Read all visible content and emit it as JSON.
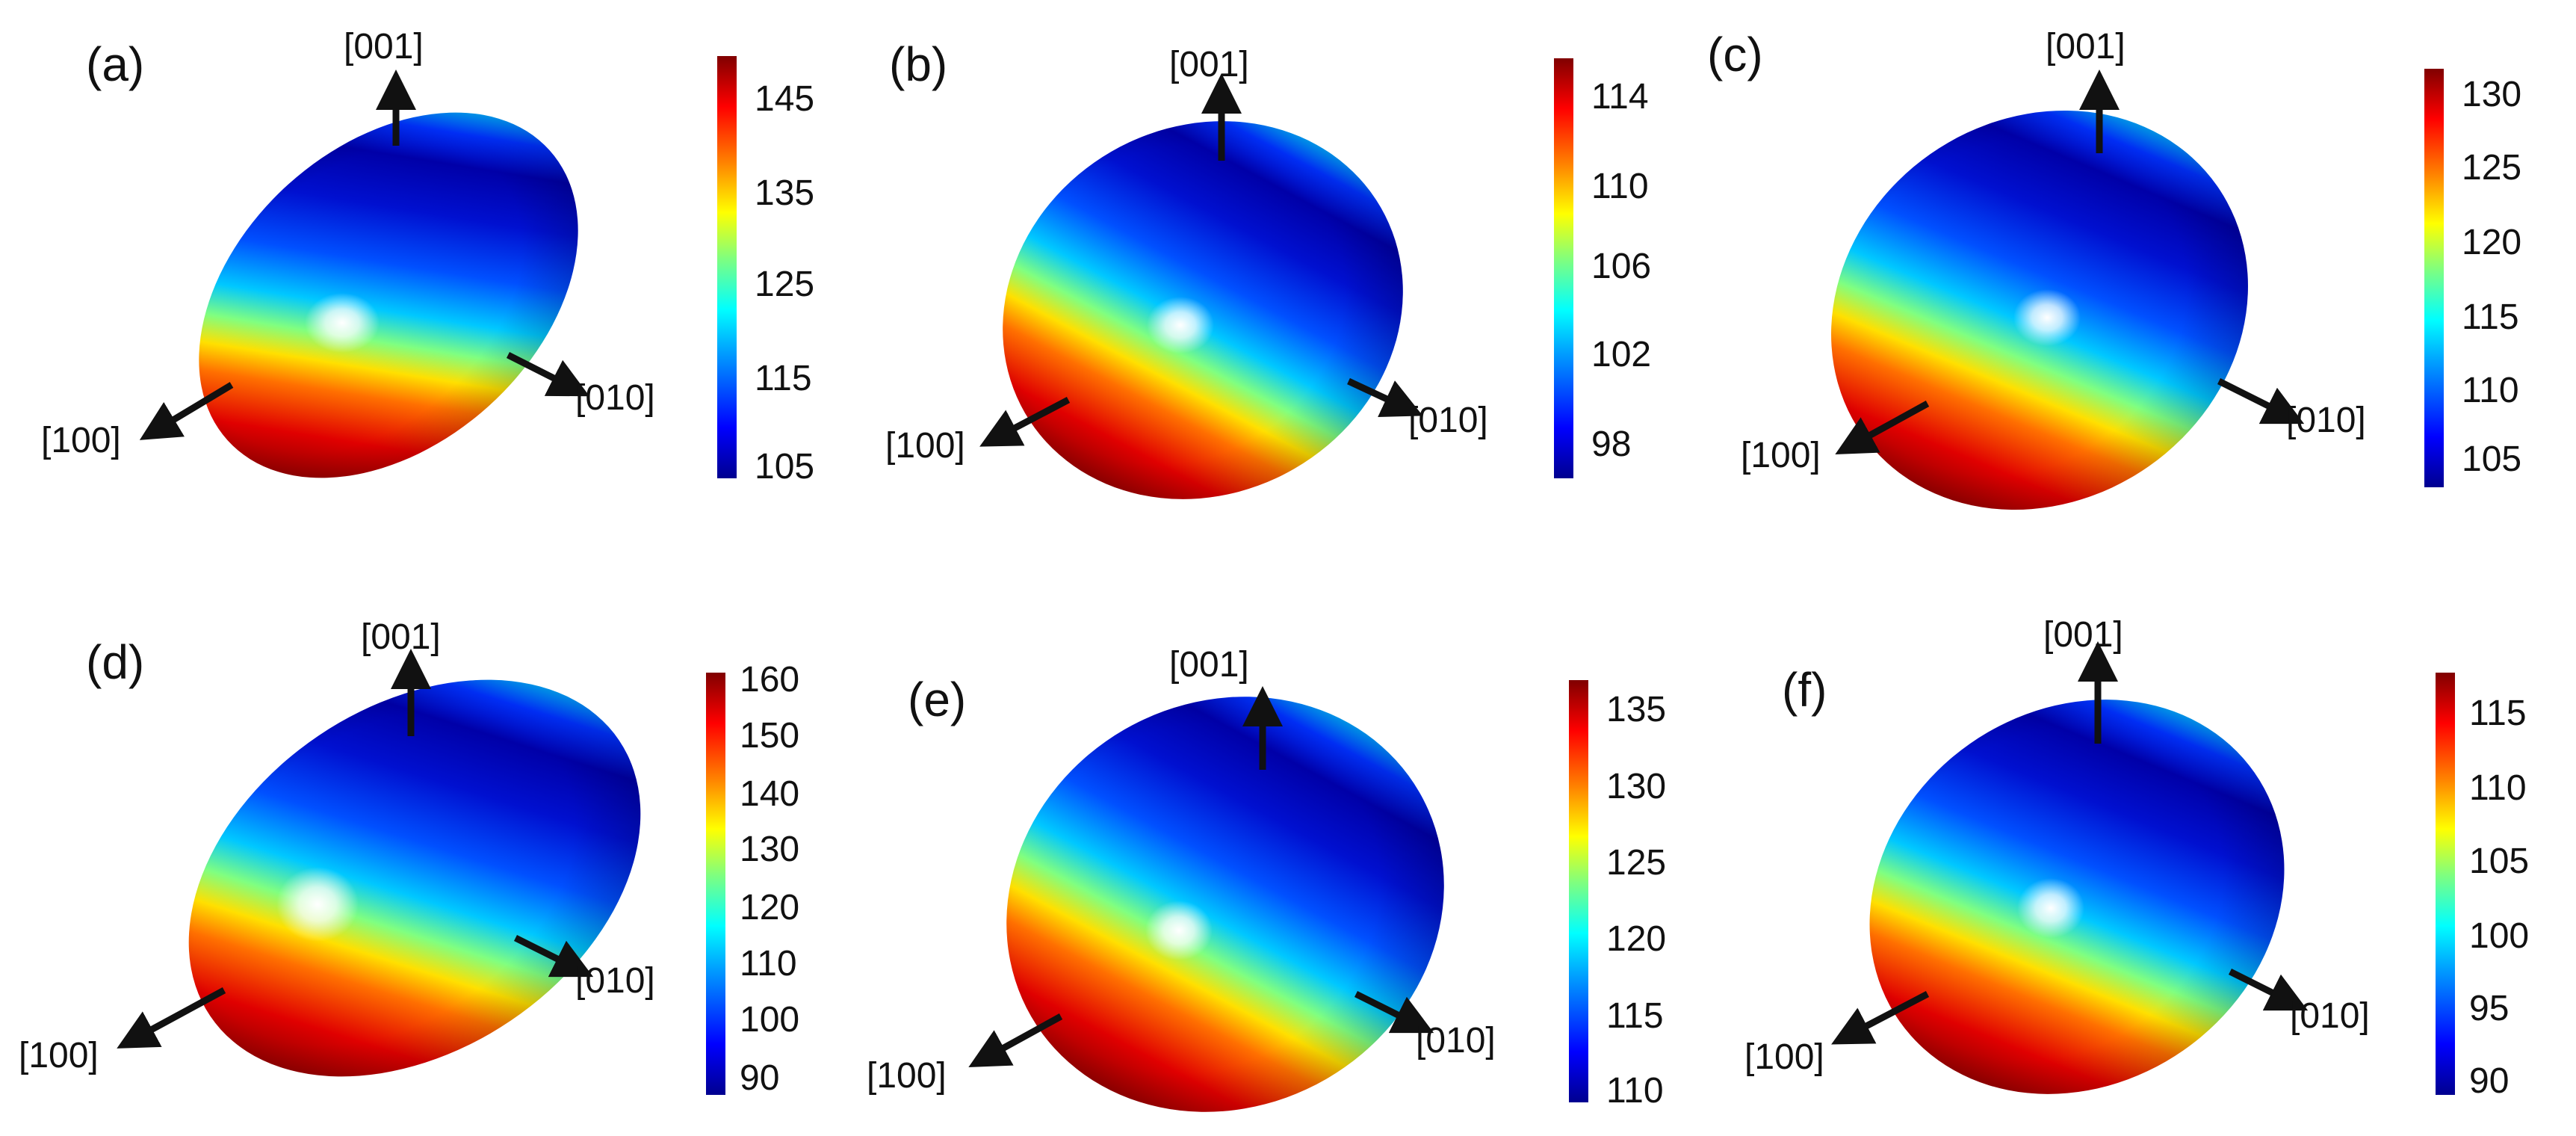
{
  "panels": [
    {
      "label": "(a)",
      "axes": {
        "x": "[100]",
        "y": "[010]",
        "z": "[001]"
      },
      "colorbar_ticks": [
        "145",
        "135",
        "125",
        "115",
        "105"
      ]
    },
    {
      "label": "(b)",
      "axes": {
        "x": "[100]",
        "y": "[010]",
        "z": "[001]"
      },
      "colorbar_ticks": [
        "114",
        "110",
        "106",
        "102",
        "98"
      ]
    },
    {
      "label": "(c)",
      "axes": {
        "x": "[100]",
        "y": "[010]",
        "z": "[001]"
      },
      "colorbar_ticks": [
        "130",
        "125",
        "120",
        "115",
        "110",
        "105"
      ]
    },
    {
      "label": "(d)",
      "axes": {
        "x": "[100]",
        "y": "[010]",
        "z": "[001]"
      },
      "colorbar_ticks": [
        "160",
        "150",
        "140",
        "130",
        "120",
        "110",
        "100",
        "90"
      ]
    },
    {
      "label": "(e)",
      "axes": {
        "x": "[100]",
        "y": "[010]",
        "z": "[001]"
      },
      "colorbar_ticks": [
        "135",
        "130",
        "125",
        "120",
        "115",
        "110"
      ]
    },
    {
      "label": "(f)",
      "axes": {
        "x": "[100]",
        "y": "[010]",
        "z": "[001]"
      },
      "colorbar_ticks": [
        "115",
        "110",
        "105",
        "100",
        "95",
        "90"
      ]
    }
  ],
  "colormap": [
    "#00008f",
    "#0000ff",
    "#00a0ff",
    "#00ffff",
    "#7fff7f",
    "#ffff00",
    "#ff8000",
    "#ff0000",
    "#800000"
  ]
}
